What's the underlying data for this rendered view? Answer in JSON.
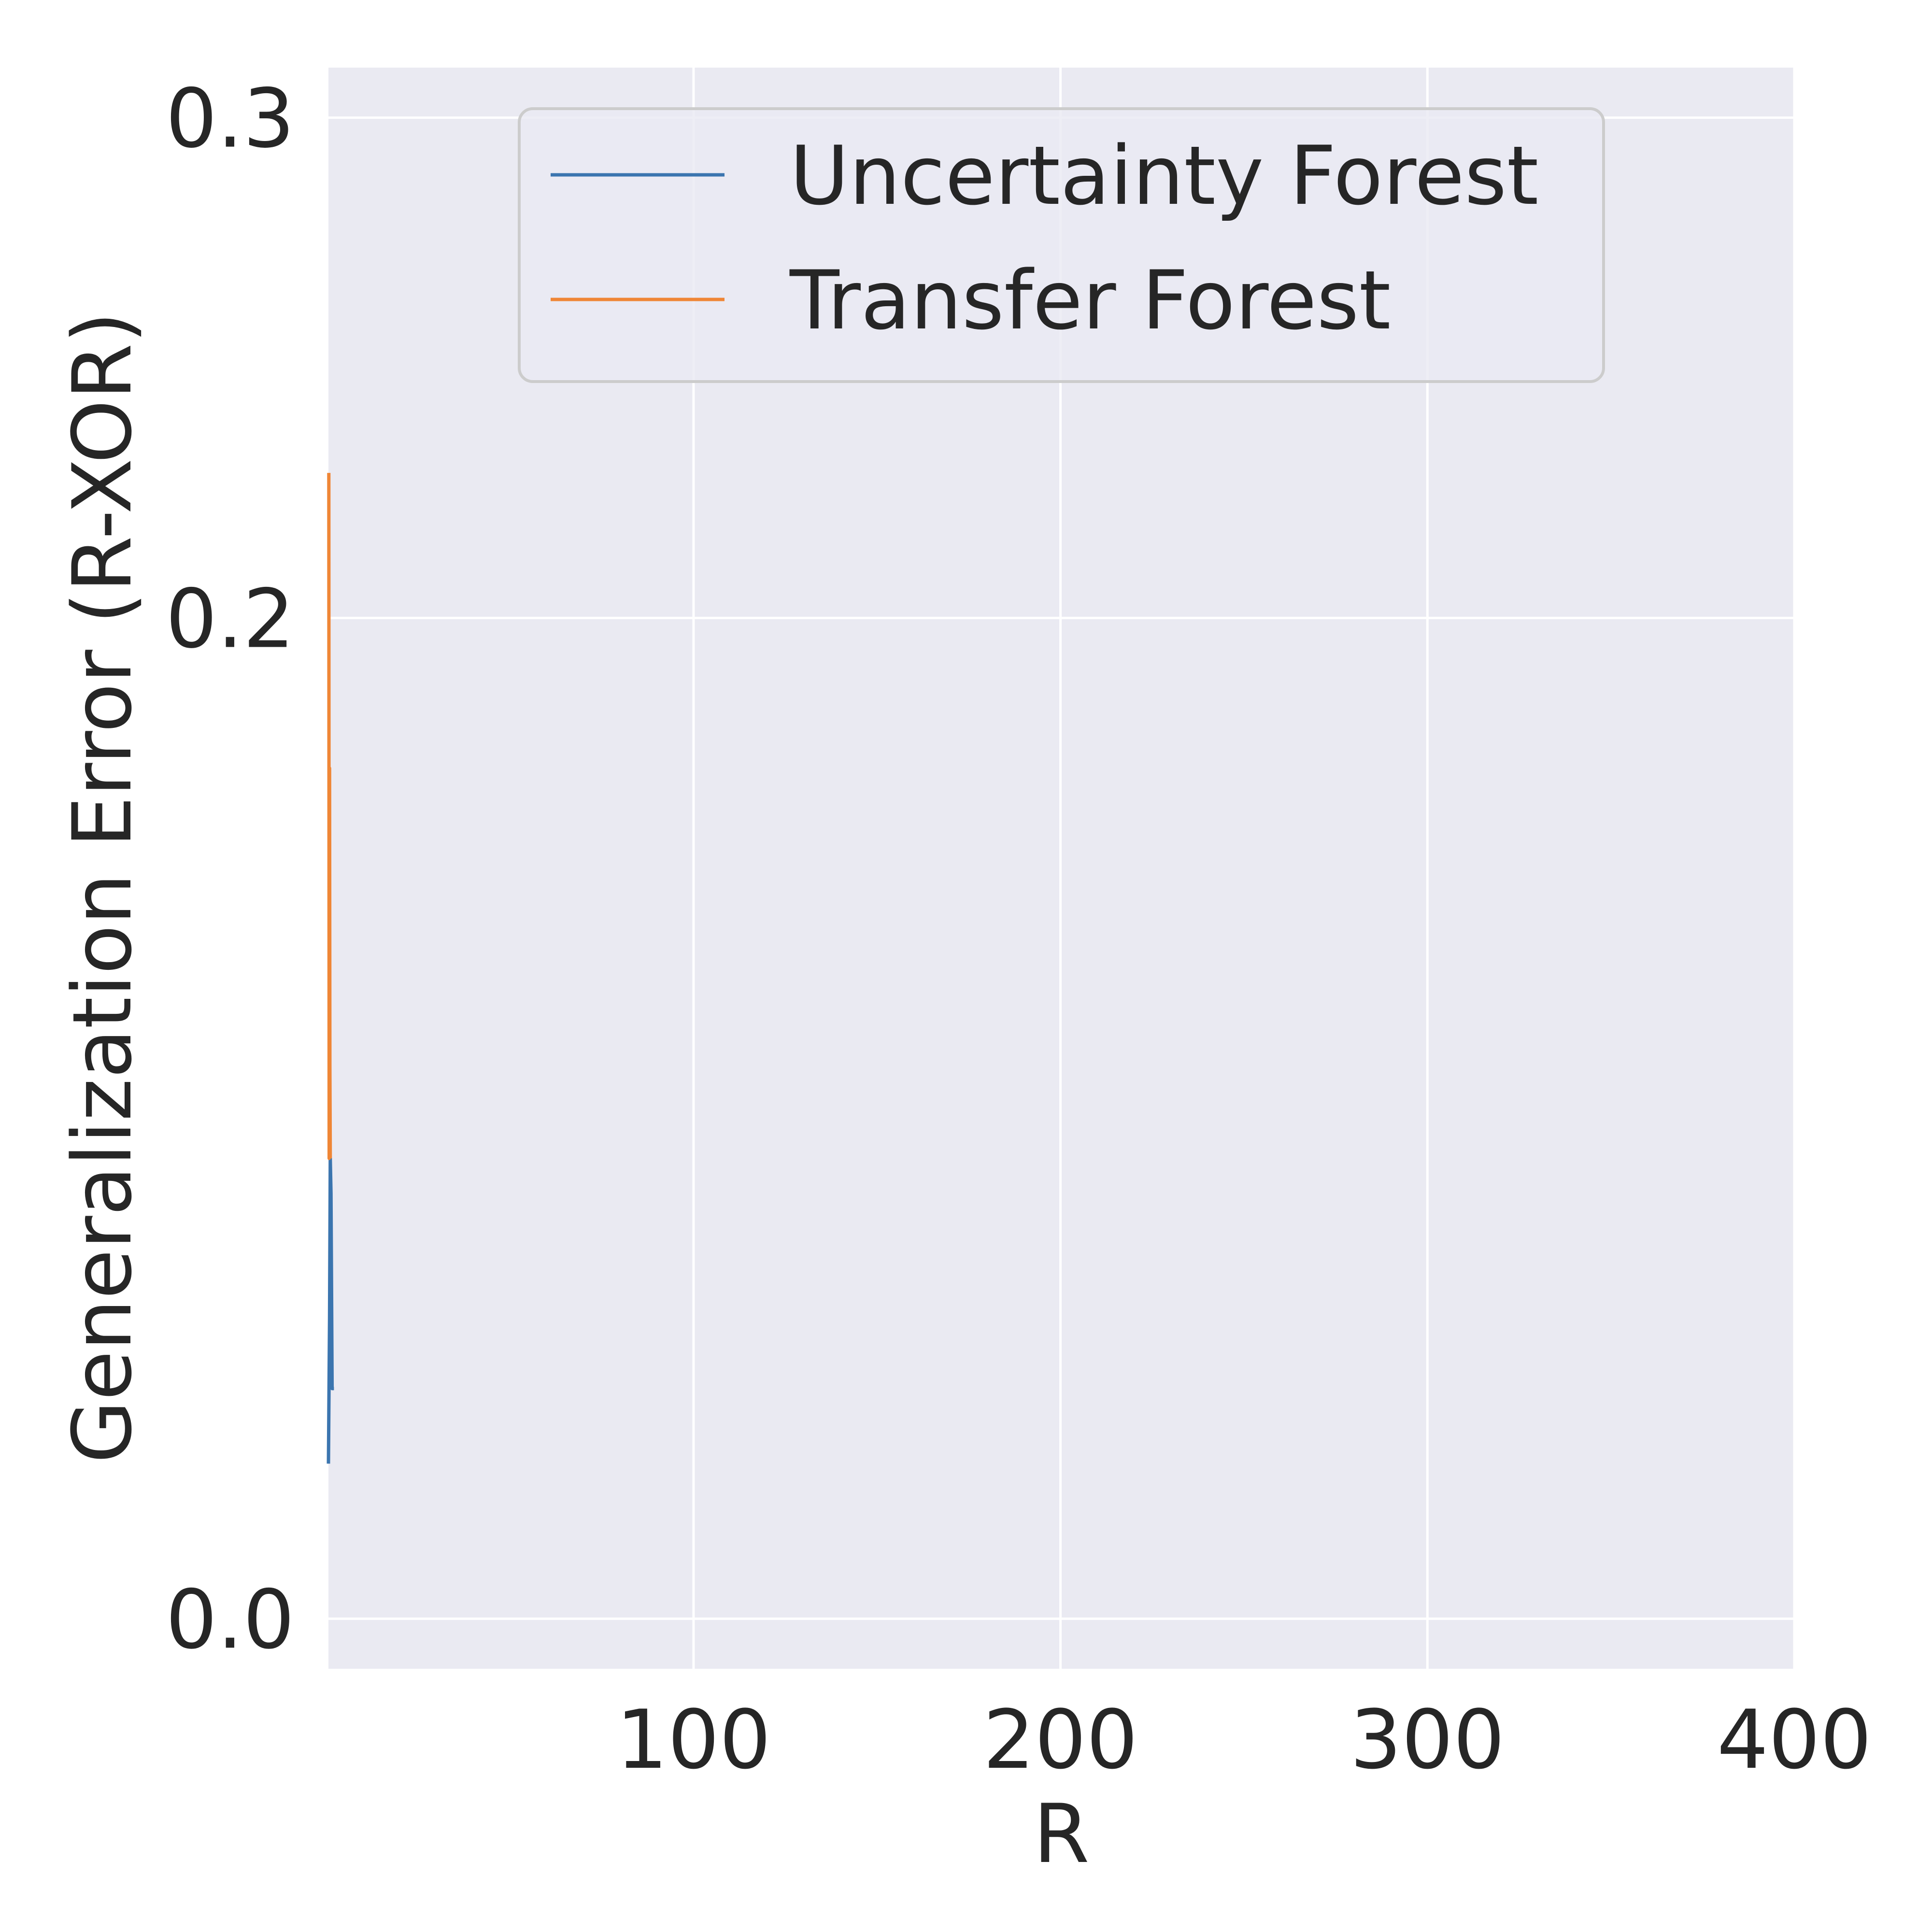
{
  "chart_data": {
    "type": "line",
    "xlabel": "R",
    "ylabel": "Generalization Error (R-XOR)",
    "xlim": [
      0.5,
      400
    ],
    "ylim": [
      -0.01,
      0.31
    ],
    "x_ticks": [
      100,
      200,
      300,
      400
    ],
    "x_tick_labels": [
      "100",
      "200",
      "300",
      "400"
    ],
    "y_ticks": [
      0.0,
      0.2,
      0.3
    ],
    "y_tick_labels": [
      "0.0",
      "0.2",
      "0.3"
    ],
    "grid": true,
    "legend_position": "top-center",
    "series": [
      {
        "name": "Uncertainty Forest",
        "color": "#3b75af",
        "x": [
          0.5,
          0.8,
          1.0,
          1.2,
          1.5,
          2.0
        ],
        "y": [
          0.031,
          0.06,
          0.092,
          0.085,
          0.046,
          0.046
        ]
      },
      {
        "name": "Transfer Forest",
        "color": "#ef8636",
        "x": [
          0.6,
          0.7,
          0.8,
          0.9,
          1.0
        ],
        "y": [
          0.229,
          0.092,
          0.17,
          0.11,
          0.092
        ]
      }
    ]
  }
}
